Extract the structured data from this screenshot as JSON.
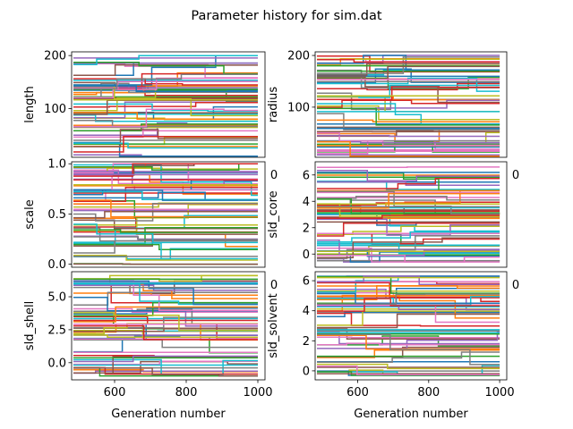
{
  "figure_title": "Parameter history for sim.dat",
  "palette": [
    "#1f77b4",
    "#ff7f0e",
    "#2ca02c",
    "#d62728",
    "#9467bd",
    "#8c564b",
    "#e377c2",
    "#7f7f7f",
    "#bcbd22",
    "#17becf"
  ],
  "chart_data": [
    {
      "type": "line",
      "ylabel": "length",
      "xlabel": "",
      "xlim": [
        480,
        1020
      ],
      "ylim": [
        8,
        207
      ],
      "xticks": [],
      "yticks": [
        {
          "v": 100,
          "label": "100"
        },
        {
          "v": 200,
          "label": "200"
        }
      ],
      "stray_tick": "0",
      "series_count": 60,
      "value_range": [
        10,
        200
      ]
    },
    {
      "type": "line",
      "ylabel": "radius",
      "xlabel": "",
      "xlim": [
        480,
        1020
      ],
      "ylim": [
        3,
        207
      ],
      "xticks": [],
      "yticks": [
        {
          "v": 100,
          "label": "100"
        },
        {
          "v": 200,
          "label": "200"
        }
      ],
      "stray_tick": "0",
      "series_count": 60,
      "value_range": [
        5,
        200
      ]
    },
    {
      "type": "line",
      "ylabel": "scale",
      "xlabel": "",
      "xlim": [
        480,
        1020
      ],
      "ylim": [
        -0.03,
        1.02
      ],
      "xticks": [],
      "yticks": [
        {
          "v": 0,
          "label": "0.0"
        },
        {
          "v": 0.5,
          "label": "0.5"
        },
        {
          "v": 1,
          "label": "1.0"
        }
      ],
      "stray_tick": "0",
      "series_count": 60,
      "value_range": [
        0,
        1
      ]
    },
    {
      "type": "line",
      "ylabel": "sld_core",
      "xlabel": "",
      "xlim": [
        480,
        1020
      ],
      "ylim": [
        -1.0,
        7.0
      ],
      "xticks": [],
      "yticks": [
        {
          "v": 0,
          "label": "0"
        },
        {
          "v": 2,
          "label": "2"
        },
        {
          "v": 4,
          "label": "4"
        },
        {
          "v": 6,
          "label": "6"
        }
      ],
      "stray_tick": "0",
      "series_count": 60,
      "value_range": [
        -0.6,
        6.6
      ]
    },
    {
      "type": "line",
      "ylabel": "sld_shell",
      "xlabel": "Generation number",
      "xlim": [
        480,
        1020
      ],
      "ylim": [
        -1.3,
        6.9
      ],
      "xticks": [
        {
          "v": 600,
          "label": "600"
        },
        {
          "v": 800,
          "label": "800"
        },
        {
          "v": 1000,
          "label": "1000"
        }
      ],
      "yticks": [
        {
          "v": 0,
          "label": "0.0"
        },
        {
          "v": 2.5,
          "label": "2.5"
        },
        {
          "v": 5,
          "label": "5.0"
        }
      ],
      "series_count": 60,
      "value_range": [
        -1.0,
        6.6
      ]
    },
    {
      "type": "line",
      "ylabel": "sld_solvent",
      "xlabel": "Generation number",
      "xlim": [
        480,
        1020
      ],
      "ylim": [
        -0.6,
        6.6
      ],
      "xticks": [
        {
          "v": 600,
          "label": "600"
        },
        {
          "v": 800,
          "label": "800"
        },
        {
          "v": 1000,
          "label": "1000"
        }
      ],
      "yticks": [
        {
          "v": 0,
          "label": "0"
        },
        {
          "v": 2,
          "label": "2"
        },
        {
          "v": 4,
          "label": "4"
        },
        {
          "v": 6,
          "label": "6"
        }
      ],
      "series_count": 60,
      "value_range": [
        -0.3,
        6.3
      ]
    }
  ]
}
